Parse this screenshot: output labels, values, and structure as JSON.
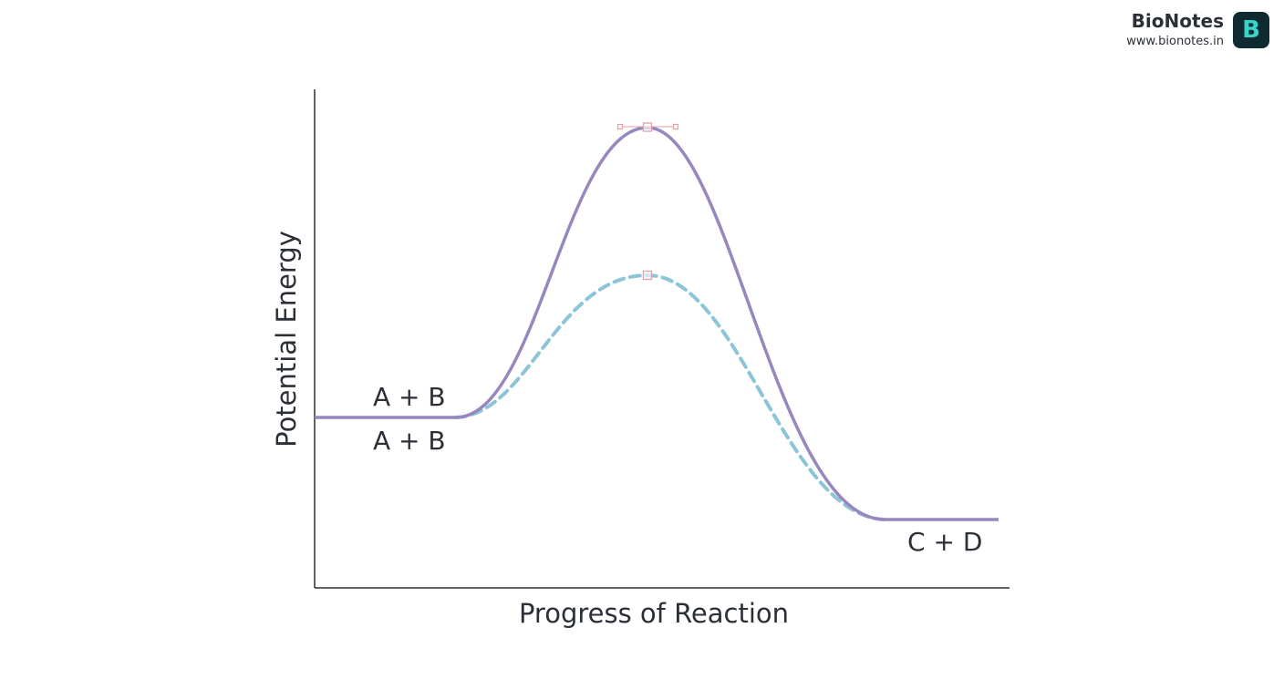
{
  "brand": {
    "name": "BioNotes",
    "url": "www.bionotes.in",
    "logo_letter": "B"
  },
  "axes": {
    "y_label": "Potential Energy",
    "x_label": "Progress of Reaction"
  },
  "labels": {
    "reactants_upper": "A + B",
    "reactants_lower": "A + B",
    "products": "C + D"
  },
  "curves": {
    "uncatalyzed": {
      "style": "solid",
      "color": "#9887bf"
    },
    "catalyzed": {
      "style": "dashed",
      "color": "#8cc4d8"
    }
  },
  "colors": {
    "axis": "#2b2f36",
    "marker": "#e2a0a8",
    "logo_bg": "#0f2a30",
    "logo_fg": "#37d4c8"
  }
}
